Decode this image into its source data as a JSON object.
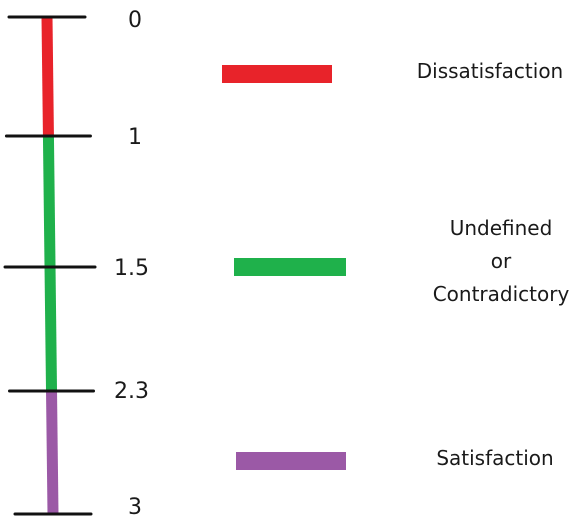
{
  "scale": {
    "ticks": [
      "0",
      "1",
      "1.5",
      "2.3",
      "3"
    ],
    "segments": [
      {
        "from": 0,
        "to": 1,
        "color": "#e8232a"
      },
      {
        "from": 1,
        "to": 2.3,
        "color": "#1fb14b"
      },
      {
        "from": 2.3,
        "to": 3,
        "color": "#9b59a6"
      }
    ],
    "axis_color": "#111111"
  },
  "legend": [
    {
      "color": "#e8232a",
      "lines": [
        "Dissatisfaction"
      ]
    },
    {
      "color": "#1fb14b",
      "lines": [
        "Undefined",
        "or",
        "Contradictory"
      ]
    },
    {
      "color": "#9b59a6",
      "lines": [
        "Satisfaction"
      ]
    }
  ]
}
